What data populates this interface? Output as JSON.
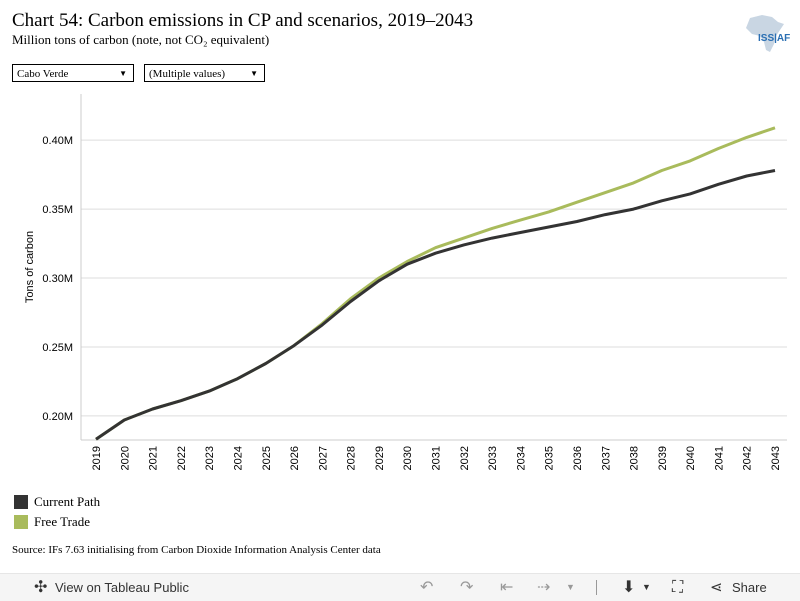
{
  "header": {
    "title": "Chart 54: Carbon emissions in CP and scenarios, 2019–2043",
    "subtitle": "Million tons of carbon (note, not CO₂ equivalent)",
    "logo_text": "ISS|AF"
  },
  "filters": [
    {
      "value": "Cabo Verde"
    },
    {
      "value": "(Multiple values)"
    }
  ],
  "chart_data": {
    "type": "line",
    "x": [
      2019,
      2020,
      2021,
      2022,
      2023,
      2024,
      2025,
      2026,
      2027,
      2028,
      2029,
      2030,
      2031,
      2032,
      2033,
      2034,
      2035,
      2036,
      2037,
      2038,
      2039,
      2040,
      2041,
      2042,
      2043
    ],
    "ylabel": "Tons of carbon",
    "ylim": [
      0.1825,
      0.4335
    ],
    "yticks": [
      0.2,
      0.25,
      0.3,
      0.35,
      0.4
    ],
    "ytick_labels": [
      "0.20M",
      "0.25M",
      "0.30M",
      "0.35M",
      "0.40M"
    ],
    "grid": true,
    "series": [
      {
        "name": "Current Path",
        "color": "#333333",
        "values": [
          0.183,
          0.197,
          0.205,
          0.211,
          0.218,
          0.227,
          0.238,
          0.251,
          0.266,
          0.283,
          0.298,
          0.31,
          0.318,
          0.324,
          0.329,
          0.333,
          0.337,
          0.341,
          0.346,
          0.35,
          0.356,
          0.361,
          0.368,
          0.374,
          0.378
        ]
      },
      {
        "name": "Free Trade",
        "color": "#a9bb5c",
        "values": [
          0.183,
          0.197,
          0.205,
          0.211,
          0.218,
          0.227,
          0.238,
          0.251,
          0.267,
          0.285,
          0.3,
          0.312,
          0.322,
          0.329,
          0.336,
          0.342,
          0.348,
          0.355,
          0.362,
          0.369,
          0.378,
          0.385,
          0.394,
          0.402,
          0.409
        ]
      }
    ]
  },
  "source": "Source: IFs 7.63 initialising from Carbon Dioxide Information Analysis Center data",
  "toolbar": {
    "view_label": "View on Tableau Public",
    "share_label": "Share"
  }
}
